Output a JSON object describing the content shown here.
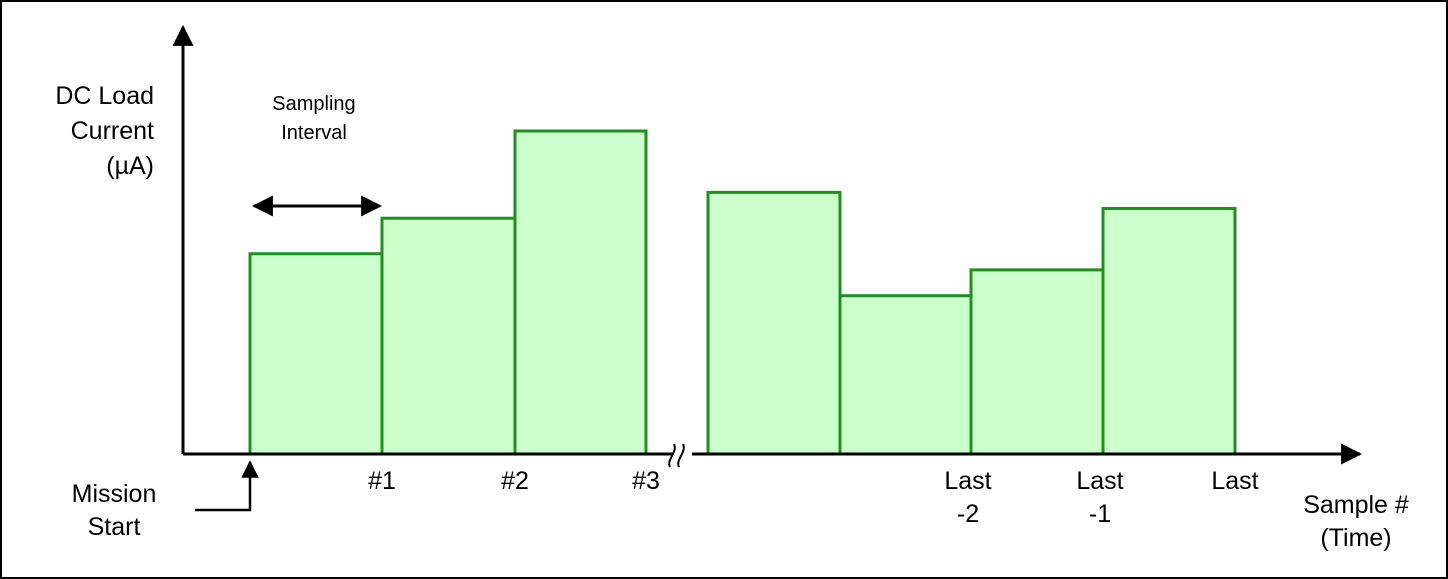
{
  "chart_data": {
    "type": "bar",
    "title": "",
    "ylabel": [
      "DC Load",
      "Current",
      "(µA)"
    ],
    "xlabel": [
      "Sample #",
      "(Time)"
    ],
    "annotation": [
      "Sampling",
      "Interval"
    ],
    "mission_start": [
      "Mission",
      "Start"
    ],
    "tick_labels": [
      {
        "at": 1,
        "lines": [
          "#1"
        ]
      },
      {
        "at": 2,
        "lines": [
          "#2"
        ]
      },
      {
        "at": 3,
        "lines": [
          "#3"
        ]
      },
      {
        "at": 7,
        "lines": [
          "Last",
          "-2"
        ]
      },
      {
        "at": 8,
        "lines": [
          "Last",
          "-1"
        ]
      },
      {
        "at": 9,
        "lines": [
          "Last"
        ]
      }
    ],
    "bars": [
      {
        "start": 0,
        "end": 1,
        "value": 0.62
      },
      {
        "start": 1,
        "end": 2,
        "value": 0.73
      },
      {
        "start": 2,
        "end": 3,
        "value": 1.0
      },
      {
        "start": 4,
        "end": 5,
        "value": 0.81
      },
      {
        "start": 5,
        "end": 6,
        "value": 0.49
      },
      {
        "start": 6,
        "end": 7,
        "value": 0.57
      },
      {
        "start": 7,
        "end": 8,
        "value": 0.76
      }
    ],
    "axis_break_after": 3,
    "y_tick_labels": false,
    "grid": false,
    "colors": {
      "bar_fill": "#ccffcc",
      "bar_stroke": "#1f8f1f",
      "axis": "#000000"
    }
  }
}
